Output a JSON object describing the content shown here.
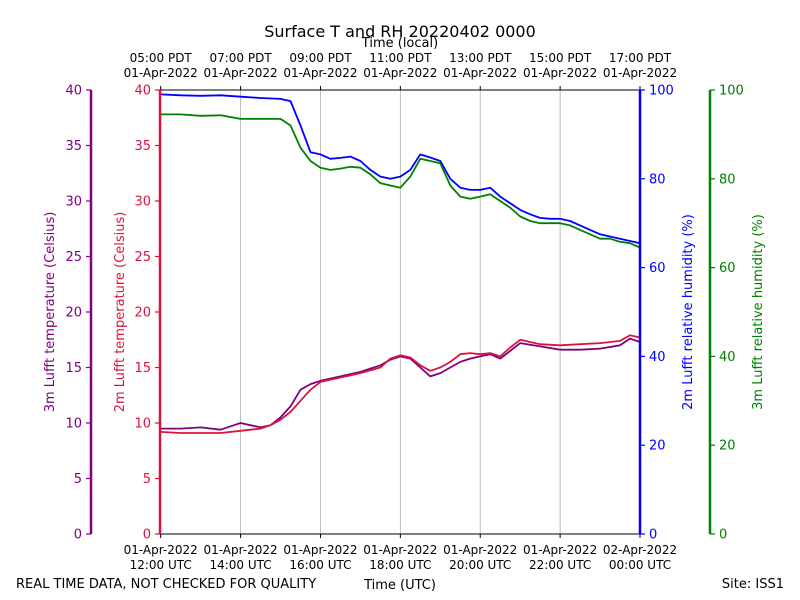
{
  "chart_data": {
    "type": "line",
    "title": "Surface T and RH 20220402 0000",
    "top_axis_label": "Time (local)",
    "bottom_axis_label": "Time (UTC)",
    "x_range_hours": [
      11.983,
      24.0
    ],
    "bottom_ticks": [
      {
        "hour": 12,
        "line1": "01-Apr-2022",
        "line2": "12:00 UTC"
      },
      {
        "hour": 14,
        "line1": "01-Apr-2022",
        "line2": "14:00 UTC"
      },
      {
        "hour": 16,
        "line1": "01-Apr-2022",
        "line2": "16:00 UTC"
      },
      {
        "hour": 18,
        "line1": "01-Apr-2022",
        "line2": "18:00 UTC"
      },
      {
        "hour": 20,
        "line1": "01-Apr-2022",
        "line2": "20:00 UTC"
      },
      {
        "hour": 22,
        "line1": "01-Apr-2022",
        "line2": "22:00 UTC"
      },
      {
        "hour": 24,
        "line1": "02-Apr-2022",
        "line2": "00:00 UTC"
      }
    ],
    "top_ticks": [
      {
        "hour": 12,
        "line1": "05:00 PDT",
        "line2": "01-Apr-2022"
      },
      {
        "hour": 14,
        "line1": "07:00 PDT",
        "line2": "01-Apr-2022"
      },
      {
        "hour": 16,
        "line1": "09:00 PDT",
        "line2": "01-Apr-2022"
      },
      {
        "hour": 18,
        "line1": "11:00 PDT",
        "line2": "01-Apr-2022"
      },
      {
        "hour": 20,
        "line1": "13:00 PDT",
        "line2": "01-Apr-2022"
      },
      {
        "hour": 22,
        "line1": "15:00 PDT",
        "line2": "01-Apr-2022"
      },
      {
        "hour": 24,
        "line1": "17:00 PDT",
        "line2": "01-Apr-2022"
      }
    ],
    "axes": [
      {
        "id": "t3",
        "label": "3m Lufft temperature (Celsius)",
        "range": [
          0,
          40
        ],
        "ticks": [
          0,
          5,
          10,
          15,
          20,
          25,
          30,
          35,
          40
        ],
        "color": "#800080",
        "side": "left-outer"
      },
      {
        "id": "t2",
        "label": "2m Lufft temperature (Celsius)",
        "range": [
          0,
          40
        ],
        "ticks": [
          0,
          5,
          10,
          15,
          20,
          25,
          30,
          35,
          40
        ],
        "color": "#dc143c",
        "side": "left-inner"
      },
      {
        "id": "rh2",
        "label": "2m Lufft relative humidity (%)",
        "range": [
          0,
          100
        ],
        "ticks": [
          0,
          20,
          40,
          60,
          80,
          100
        ],
        "color": "#0000ff",
        "side": "right-inner"
      },
      {
        "id": "rh3",
        "label": "3m Lufft relative humidity (%)",
        "range": [
          0,
          100
        ],
        "ticks": [
          0,
          20,
          40,
          60,
          80,
          100
        ],
        "color": "#008000",
        "side": "right-outer"
      }
    ],
    "series": [
      {
        "name": "2m Lufft relative humidity",
        "axis": "rh2",
        "color": "#0000ff",
        "x": [
          12.0,
          12.5,
          13.0,
          13.5,
          14.0,
          14.5,
          15.0,
          15.25,
          15.5,
          15.75,
          16.0,
          16.25,
          16.5,
          16.75,
          17.0,
          17.25,
          17.5,
          17.75,
          18.0,
          18.25,
          18.5,
          18.75,
          19.0,
          19.25,
          19.5,
          19.75,
          20.0,
          20.25,
          20.5,
          20.75,
          21.0,
          21.25,
          21.5,
          21.75,
          22.0,
          22.25,
          22.5,
          22.75,
          23.0,
          23.25,
          23.5,
          23.75,
          24.0
        ],
        "values": [
          99,
          98.8,
          98.7,
          98.8,
          98.5,
          98.2,
          98.0,
          97.5,
          92,
          86,
          85.5,
          84.5,
          84.7,
          85,
          84,
          82,
          80.5,
          80,
          80.5,
          82,
          85.5,
          84.8,
          84,
          80,
          78,
          77.5,
          77.5,
          78,
          76,
          74.5,
          73,
          72,
          71.2,
          71,
          71,
          70.5,
          69.5,
          68.5,
          67.5,
          67,
          66.5,
          66,
          65.5
        ]
      },
      {
        "name": "3m Lufft relative humidity",
        "axis": "rh3",
        "color": "#008000",
        "x": [
          12.0,
          12.5,
          13.0,
          13.5,
          14.0,
          14.5,
          15.0,
          15.25,
          15.5,
          15.75,
          16.0,
          16.25,
          16.5,
          16.75,
          17.0,
          17.25,
          17.5,
          17.75,
          18.0,
          18.25,
          18.5,
          18.75,
          19.0,
          19.25,
          19.5,
          19.75,
          20.0,
          20.25,
          20.5,
          20.75,
          21.0,
          21.25,
          21.5,
          21.75,
          22.0,
          22.25,
          22.5,
          22.75,
          23.0,
          23.25,
          23.5,
          23.75,
          24.0
        ],
        "values": [
          94.5,
          94.5,
          94.2,
          94.3,
          93.5,
          93.5,
          93.5,
          92,
          87,
          84,
          82.5,
          82,
          82.3,
          82.7,
          82.5,
          81,
          79,
          78.5,
          78,
          80.5,
          84.5,
          84,
          83.5,
          78.5,
          76,
          75.5,
          76,
          76.5,
          75,
          73.5,
          71.5,
          70.5,
          70,
          70,
          70,
          69.5,
          68.5,
          67.5,
          66.5,
          66.5,
          65.8,
          65.5,
          64.5
        ]
      },
      {
        "name": "3m Lufft temperature",
        "axis": "t3",
        "color": "#800080",
        "x": [
          12.0,
          12.5,
          13.0,
          13.5,
          13.75,
          14.0,
          14.5,
          14.75,
          15.0,
          15.25,
          15.5,
          15.75,
          16.0,
          16.5,
          17.0,
          17.5,
          17.75,
          18.0,
          18.25,
          18.5,
          18.75,
          19.0,
          19.25,
          19.5,
          19.75,
          20.0,
          20.25,
          20.5,
          20.75,
          21.0,
          21.5,
          22.0,
          22.5,
          23.0,
          23.5,
          23.75,
          24.0
        ],
        "values": [
          9.5,
          9.5,
          9.6,
          9.4,
          9.7,
          10.0,
          9.6,
          9.8,
          10.5,
          11.5,
          13.0,
          13.5,
          13.8,
          14.2,
          14.6,
          15.2,
          15.7,
          16.0,
          15.8,
          15.0,
          14.2,
          14.5,
          15.0,
          15.5,
          15.8,
          16.0,
          16.2,
          15.8,
          16.5,
          17.2,
          16.9,
          16.6,
          16.6,
          16.7,
          17.0,
          17.6,
          17.3
        ]
      },
      {
        "name": "2m Lufft temperature",
        "axis": "t2",
        "color": "#dc143c",
        "x": [
          12.0,
          12.5,
          13.0,
          13.5,
          14.0,
          14.5,
          14.75,
          15.0,
          15.25,
          15.5,
          15.75,
          16.0,
          16.5,
          17.0,
          17.5,
          17.75,
          18.0,
          18.25,
          18.5,
          18.75,
          19.0,
          19.25,
          19.5,
          19.75,
          20.0,
          20.25,
          20.5,
          20.75,
          21.0,
          21.5,
          22.0,
          22.5,
          23.0,
          23.5,
          23.75,
          24.0
        ],
        "values": [
          9.2,
          9.1,
          9.1,
          9.1,
          9.3,
          9.5,
          9.8,
          10.3,
          11.0,
          12.0,
          13.0,
          13.7,
          14.1,
          14.5,
          15.0,
          15.8,
          16.1,
          15.9,
          15.2,
          14.7,
          15.0,
          15.5,
          16.2,
          16.3,
          16.2,
          16.3,
          16.0,
          16.8,
          17.5,
          17.1,
          17.0,
          17.1,
          17.2,
          17.4,
          17.9,
          17.7
        ]
      }
    ]
  },
  "footer": {
    "left_note": "REAL TIME DATA, NOT CHECKED FOR QUALITY",
    "site": "Site: ISS1"
  }
}
